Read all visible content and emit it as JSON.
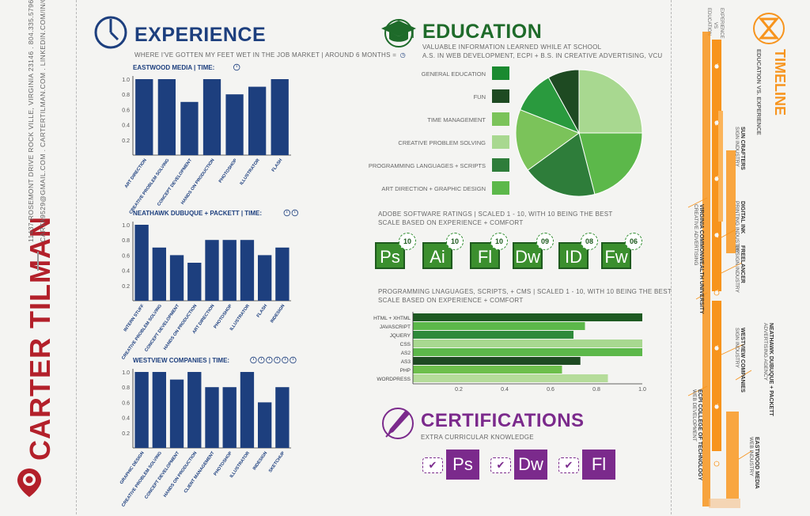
{
  "profile": {
    "name": "CARTER TILMAN",
    "address": "11437 ROSEMONT DRIVE ROCK VILLE, VIRGINIA 23146 . 804.335.5796",
    "contact": "CARTA9529@GMAIL.COM . CARTERTILMAN.COM . LINKEDIN.COM/IN/CTILMAN"
  },
  "experience": {
    "title": "EXPERIENCE",
    "subtitle": "WHERE I'VE GOTTEN MY FEET WET IN THE JOB MARKET  |  AROUND 6 MONTHS =",
    "time_label": "TIME:",
    "charts": [
      {
        "company": "EASTWOOD MEDIA",
        "clocks": 1,
        "categories": [
          "ART DIRECTION",
          "CREATIVE PROBLEM SOLVING",
          "CONCEPT DEVELOPMENT",
          "HANDS ON PRODUCTION",
          "PHOTOSHOP",
          "ILLUSTRATOR",
          "FLASH"
        ],
        "values": [
          1.0,
          1.0,
          0.7,
          1.0,
          0.8,
          0.9,
          1.0
        ]
      },
      {
        "company": "NEATHAWK DUBUQUE + PACKETT",
        "clocks": 2,
        "categories": [
          "INTERN STUFF",
          "CREATIVE PROBLEM SOLVING",
          "CONCEPT DEVELOPMENT",
          "HANDS ON PRODUCTION",
          "ART DIRECTION",
          "PHOTOSHOP",
          "ILLUSTRATOR",
          "FLASH",
          "INDESIGN"
        ],
        "values": [
          1.0,
          0.7,
          0.6,
          0.5,
          0.8,
          0.8,
          0.8,
          0.6,
          0.7
        ]
      },
      {
        "company": "WESTVIEW COMPANIES",
        "clocks": 6,
        "categories": [
          "GRAPHIC DESIGN",
          "CREATIVE PROBLEM SOLVING",
          "CONCEPT DEVELOPMENT",
          "HANDS ON PRODUCTION",
          "CLIENT MANAGEMENT",
          "PHOTOSHOP",
          "ILLUSTRATOR",
          "INDESIGN",
          "SKETCHUP"
        ],
        "values": [
          1.0,
          1.0,
          0.9,
          1.0,
          0.8,
          0.8,
          1.0,
          0.6,
          0.8
        ]
      }
    ],
    "ticks": [
      "1.0",
      "0.8",
      "0.6",
      "0.4",
      "0.2"
    ]
  },
  "education": {
    "title": "EDUCATION",
    "line1": "VALUABLE INFORMATION LEARNED WHILE AT SCHOOL",
    "line2": "A.S. IN WEB DEVELOPMENT, ECPI + B.S. IN CREATIVE ADVERTISING, VCU",
    "pie": {
      "labels": [
        "GENERAL EDUCATION",
        "FUN",
        "TIME MANAGEMENT",
        "CREATIVE PROBLEM SOLVING",
        "PROGRAMMING LANGUAGES + SCRIPTS",
        "ART DIRECTION + GRAPHIC DESIGN"
      ],
      "values": [
        0.08,
        0.11,
        0.16,
        0.19,
        0.21,
        0.25
      ],
      "colors": [
        "#1a6b2a",
        "#1e4a22",
        "#6dbf4b",
        "#a8d890",
        "#2e7d3a",
        "#5cb84a"
      ],
      "slices": [
        {
          "value": 0.25,
          "color": "#a8d890"
        },
        {
          "value": 0.21,
          "color": "#5cb84a"
        },
        {
          "value": 0.19,
          "color": "#2e7d3a"
        },
        {
          "value": 0.16,
          "color": "#7bc35a"
        },
        {
          "value": 0.11,
          "color": "#2a9a3e"
        },
        {
          "value": 0.08,
          "color": "#1e4a22"
        }
      ]
    }
  },
  "adobe": {
    "line1": "ADOBE SOFTWARE RATINGS  |  SCALED 1 - 10, WITH 10 BEING THE BEST",
    "line2": "SCALE BASED ON EXPERIENCE + COMFORT",
    "apps": [
      {
        "abbr": "Ps",
        "rating": "10"
      },
      {
        "abbr": "Ai",
        "rating": "10"
      },
      {
        "abbr": "Fl",
        "rating": "10"
      },
      {
        "abbr": "Dw",
        "rating": "09"
      },
      {
        "abbr": "ID",
        "rating": "08"
      },
      {
        "abbr": "Fw",
        "rating": "06"
      }
    ]
  },
  "programming": {
    "line1": "PROGRAMMING LNAGUAGES, SCRIPTS, + CMS  |  SCALED 1 - 10, WITH 10 BEING THE BEST",
    "line2": "SCALE BASED ON EXPERIENCE + COMFORT",
    "chart_data": {
      "type": "bar",
      "orientation": "horizontal",
      "categories": [
        "HTML + XHTML",
        "JAVASCRIPT",
        "JQUERY",
        "CSS",
        "AS2",
        "AS3",
        "PHP",
        "WORDPRESS"
      ],
      "values": [
        1.0,
        0.75,
        0.7,
        1.0,
        1.0,
        0.73,
        0.65,
        0.85
      ],
      "colors": [
        "#1e5a22",
        "#5cb84a",
        "#2e8a3a",
        "#a8d890",
        "#5cb84a",
        "#1e4a22",
        "#6dbf4b",
        "#b5dc9a"
      ],
      "xticks": [
        "0.2",
        "0.4",
        "0.6",
        "0.8",
        "1.0"
      ],
      "xlim": [
        0,
        1
      ]
    }
  },
  "certifications": {
    "title": "CERTIFICATIONS",
    "subtitle": "EXTRA CURRICULAR KNOWLEDGE",
    "items": [
      "Ps",
      "Dw",
      "Fl"
    ],
    "check": "✔"
  },
  "timeline": {
    "title": "TIMELINE",
    "subtitle": "EDUCATION VS. EXPERIENCE",
    "legend_experience": "EXPERIENCE",
    "legend_vs": "VS",
    "legend_education": "EDUCATION",
    "years": [
      "'04",
      "'05",
      "'06",
      "'07",
      "'08",
      "'09",
      "'10",
      "'11",
      "'12"
    ],
    "entries": [
      {
        "name": "SUN CRAFTERS",
        "role": "SIGN INDUSTRY"
      },
      {
        "name": "DIGITAL INK",
        "role": "PRINTING INDUSTRY"
      },
      {
        "name": "FREELANCER",
        "role": "DESIGN INDUSTRY"
      },
      {
        "name": "VIRGINIA COMMONWEALTH UNIVERSITY",
        "role": "CREATIVE ADVERTISING"
      },
      {
        "name": "WESTVIEW COMPANIES",
        "role": "SIGN INDUSTRY"
      },
      {
        "name": "NEATHAWK DUBUQUE + PACKETT",
        "role": "ADVERTISING AGENCY"
      },
      {
        "name": "ECPI COLLEGE OF TECHNOLOGY",
        "role": "WEB DEVELOPMENT"
      },
      {
        "name": "EASTWOOD MEDIA",
        "role": "WEB INDUSTRY"
      }
    ]
  },
  "colors": {
    "blue": "#1d3f7e",
    "green": "#1e6b2a",
    "purple": "#7b2a8c",
    "orange": "#f7941d",
    "red": "#b3202a"
  }
}
